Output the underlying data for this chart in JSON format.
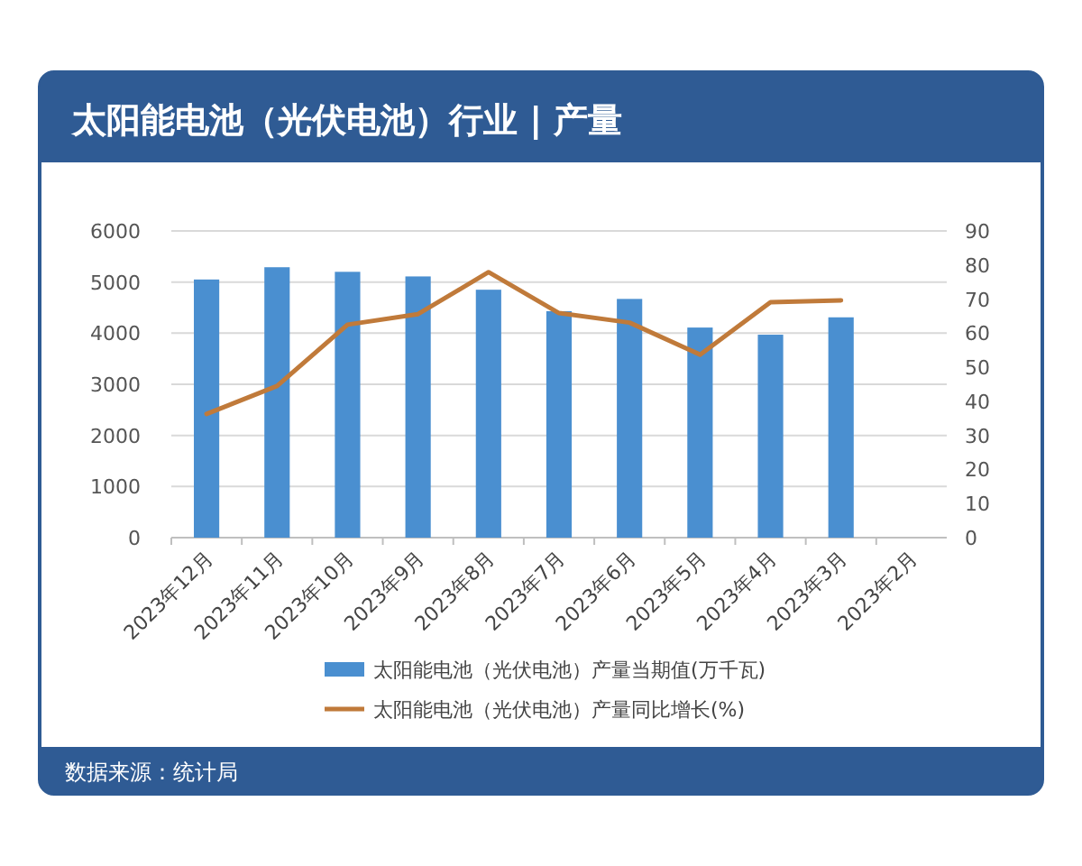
{
  "chart_data": {
    "type": "bar",
    "title": "太阳能电池（光伏电池）行业 | 产量",
    "categories": [
      "2023年12月",
      "2023年11月",
      "2023年10月",
      "2023年9月",
      "2023年8月",
      "2023年7月",
      "2023年6月",
      "2023年5月",
      "2023年4月",
      "2023年3月",
      "2023年2月"
    ],
    "series": [
      {
        "name": "太阳能电池（光伏电池）产量当期值(万千瓦)",
        "color": "#4a8fd0",
        "values": [
          5050,
          5290,
          5200,
          5110,
          4850,
          4430,
          4670,
          4110,
          3970,
          4310,
          null
        ]
      },
      {
        "name": "太阳能电池（光伏电池）产量同比增长(%)",
        "color": "#c07a3a",
        "type": "line",
        "axis": "y2",
        "values": [
          36.3,
          44.5,
          62.5,
          65.6,
          77.9,
          65.9,
          63.1,
          53.7,
          69.1,
          69.6,
          null
        ]
      }
    ],
    "ylim": [
      0,
      6000
    ],
    "yticks": [
      0,
      1000,
      2000,
      3000,
      4000,
      5000,
      6000
    ],
    "y2lim": [
      0,
      90
    ],
    "y2ticks": [
      0,
      10,
      20,
      30,
      40,
      50,
      60,
      70,
      80,
      90
    ],
    "grid": "y",
    "legend": "bottom",
    "annotations": [
      "数据来源：统计局"
    ]
  }
}
